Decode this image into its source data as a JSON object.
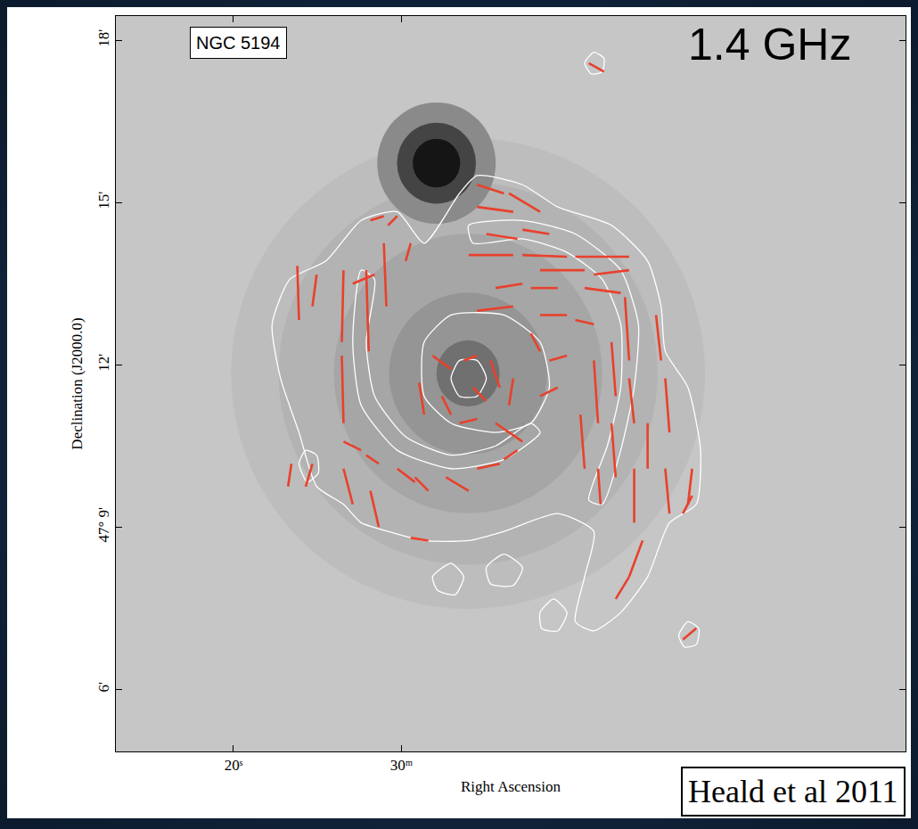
{
  "chart_data": {
    "type": "vector",
    "x_label": "Right Ascension",
    "y_label": "Declination (J2000.0)",
    "annotations": [
      "NGC 5194",
      "1.4 GHz",
      "Heald et al 2011"
    ],
    "xlim": [
      94,
      0
    ],
    "ylim": [
      4.85,
      18.45
    ],
    "xticks": [
      {
        "value": 80,
        "label": "20ˢ"
      },
      {
        "value": 60,
        "label": "30ᵐ"
      }
    ],
    "yticks": [
      {
        "value": 18,
        "label": "18'"
      },
      {
        "value": 15,
        "label": "15'"
      },
      {
        "value": 12,
        "label": "12'"
      },
      {
        "value": 9,
        "label": "47° 9'"
      },
      {
        "value": 6,
        "label": "6'"
      }
    ],
    "grid": false,
    "series": [
      {
        "type": "contour",
        "color": "#ffffff",
        "lines": [
          {
            "x": [
              75.4,
              73.3,
              69.0,
              64.8,
              60.5,
              57.3,
              53.1,
              51.0,
              45.6,
              41.4,
              35.0,
              30.7,
              29.1,
              28.6,
              25.9,
              24.4,
              24.9,
              28.1,
              30.7,
              33.9,
              37.1,
              39.3,
              38.2,
              37.1,
              41.4,
              47.8,
              52.0,
              57.3,
              61.6,
              64.8,
              66.9,
              70.1,
              72.2,
              74.4,
              75.4
            ],
            "y": [
              12.75,
              13.58,
              13.92,
              14.67,
              14.83,
              14.25,
              15.17,
              15.5,
              15.33,
              14.92,
              14.58,
              13.92,
              13.08,
              12.25,
              11.58,
              10.42,
              9.42,
              9.08,
              8.08,
              7.42,
              7.08,
              7.25,
              8.08,
              8.92,
              9.25,
              8.92,
              8.75,
              8.75,
              8.92,
              9.08,
              9.42,
              9.75,
              10.75,
              11.75,
              12.75
            ]
          },
          {
            "x": [
              64.8,
              65.8,
              64.8,
              60.5,
              54.1,
              47.8,
              43.5,
              44.6,
              48.8,
              54.1,
              59.5,
              63.2,
              64.2,
              63.2,
              64.8
            ],
            "y": [
              13.75,
              12.42,
              11.25,
              10.42,
              10.08,
              10.25,
              10.75,
              10.92,
              10.5,
              10.33,
              10.67,
              11.42,
              12.42,
              13.58,
              13.75
            ]
          },
          {
            "x": [
              52.0,
              45.6,
              39.3,
              33.9,
              31.8,
              32.3,
              33.9,
              36.1,
              37.7,
              35.5,
              33.9,
              33.9,
              36.1,
              40.3,
              45.6,
              51.5,
              52.0
            ],
            "y": [
              14.58,
              14.67,
              14.42,
              13.75,
              12.75,
              11.58,
              10.42,
              9.42,
              9.5,
              10.5,
              11.58,
              12.75,
              13.58,
              14.08,
              14.33,
              14.25,
              14.58
            ]
          },
          {
            "x": [
              54.1,
              53.1,
              51.0,
              49.9,
              51.0,
              53.1,
              54.1
            ],
            "y": [
              11.75,
              12.08,
              12.08,
              11.75,
              11.42,
              11.42,
              11.75
            ]
          },
          {
            "x": [
              57.3,
              54.1,
              47.8,
              43.5,
              42.4,
              44.6,
              48.8,
              54.1,
              57.3,
              57.3
            ],
            "y": [
              12.42,
              12.92,
              12.92,
              12.42,
              11.58,
              10.92,
              10.75,
              10.92,
              11.42,
              12.42
            ]
          },
          {
            "x": [
              38.2,
              37.1,
              35.9,
              36.1,
              37.4,
              38.2
            ],
            "y": [
              17.58,
              17.78,
              17.67,
              17.42,
              17.38,
              17.58
            ]
          },
          {
            "x": [
              72.2,
              71.4,
              70.1,
              69.9,
              71.2,
              72.2
            ],
            "y": [
              10.17,
              10.42,
              10.33,
              10.0,
              9.83,
              10.17
            ]
          },
          {
            "x": [
              27.0,
              25.9,
              24.6,
              24.9,
              26.3,
              27.0
            ],
            "y": [
              7.0,
              7.25,
              7.12,
              6.83,
              6.78,
              7.0
            ]
          },
          {
            "x": [
              49.9,
              47.8,
              45.6,
              46.7,
              49.4,
              49.9
            ],
            "y": [
              8.25,
              8.5,
              8.25,
              7.92,
              7.95,
              8.25
            ]
          },
          {
            "x": [
              43.5,
              41.9,
              40.3,
              41.4,
              43.3,
              43.5
            ],
            "y": [
              7.42,
              7.67,
              7.42,
              7.08,
              7.12,
              7.42
            ]
          },
          {
            "x": [
              56.3,
              54.1,
              52.6,
              53.6,
              55.7,
              56.3
            ],
            "y": [
              8.08,
              8.33,
              8.08,
              7.75,
              7.83,
              8.08
            ]
          }
        ]
      },
      {
        "type": "vector",
        "color": "#e8412c",
        "segments": [
          [
            72.4,
            13.83,
            72.2,
            12.83
          ],
          [
            70.1,
            13.67,
            70.6,
            13.08
          ],
          [
            66.9,
            13.75,
            67.1,
            12.42
          ],
          [
            67.1,
            12.17,
            66.9,
            10.92
          ],
          [
            64.2,
            13.75,
            63.9,
            12.25
          ],
          [
            63.7,
            14.67,
            62.1,
            14.75
          ],
          [
            61.6,
            14.58,
            60.5,
            14.75
          ],
          [
            59.5,
            13.92,
            58.9,
            14.25
          ],
          [
            62.1,
            14.25,
            61.8,
            13.08
          ],
          [
            65.8,
            13.5,
            63.2,
            13.67
          ],
          [
            66.9,
            10.58,
            64.8,
            10.42
          ],
          [
            64.2,
            10.33,
            62.7,
            10.17
          ],
          [
            66.9,
            10.08,
            65.8,
            9.42
          ],
          [
            63.7,
            9.67,
            62.7,
            9.0
          ],
          [
            60.5,
            10.08,
            58.4,
            9.83
          ],
          [
            58.4,
            9.92,
            56.8,
            9.67
          ],
          [
            58.9,
            8.8,
            56.8,
            8.75
          ],
          [
            54.7,
            9.92,
            52.0,
            9.67
          ],
          [
            70.6,
            10.17,
            71.4,
            9.75
          ],
          [
            51.0,
            15.33,
            47.8,
            15.17
          ],
          [
            47.2,
            15.17,
            43.5,
            14.83
          ],
          [
            51.0,
            14.92,
            46.7,
            14.83
          ],
          [
            49.9,
            14.42,
            46.2,
            14.33
          ],
          [
            45.6,
            14.5,
            42.4,
            14.42
          ],
          [
            52.0,
            14.03,
            46.7,
            14.03
          ],
          [
            45.6,
            14.03,
            40.3,
            14.0
          ],
          [
            39.3,
            14.0,
            32.9,
            14.0
          ],
          [
            43.5,
            13.75,
            38.2,
            13.75
          ],
          [
            37.1,
            13.67,
            32.9,
            13.75
          ],
          [
            48.8,
            13.42,
            45.6,
            13.5
          ],
          [
            44.6,
            13.42,
            41.4,
            13.42
          ],
          [
            38.2,
            13.42,
            33.9,
            13.33
          ],
          [
            51.0,
            13.0,
            46.7,
            13.08
          ],
          [
            43.5,
            12.92,
            40.3,
            12.92
          ],
          [
            39.3,
            12.83,
            37.1,
            12.75
          ],
          [
            33.4,
            13.25,
            32.9,
            12.08
          ],
          [
            29.7,
            12.92,
            29.1,
            12.08
          ],
          [
            35.0,
            12.42,
            34.5,
            11.42
          ],
          [
            37.1,
            12.08,
            36.6,
            10.92
          ],
          [
            28.6,
            11.75,
            28.1,
            10.75
          ],
          [
            32.9,
            11.75,
            32.3,
            10.92
          ],
          [
            38.7,
            11.08,
            38.2,
            10.08
          ],
          [
            35.0,
            10.92,
            34.5,
            9.92
          ],
          [
            30.7,
            10.92,
            30.7,
            10.08
          ],
          [
            32.3,
            10.08,
            32.3,
            9.08
          ],
          [
            36.6,
            10.08,
            36.3,
            9.42
          ],
          [
            28.6,
            10.08,
            28.1,
            9.25
          ],
          [
            25.4,
            10.08,
            25.9,
            9.42
          ],
          [
            31.3,
            8.75,
            32.9,
            8.08
          ],
          [
            32.9,
            8.08,
            34.5,
            7.67
          ],
          [
            56.3,
            12.17,
            54.1,
            11.92
          ],
          [
            52.6,
            12.08,
            51.0,
            12.17
          ],
          [
            49.4,
            12.08,
            48.3,
            11.58
          ],
          [
            46.7,
            11.75,
            47.2,
            11.25
          ],
          [
            51.5,
            11.58,
            49.9,
            11.33
          ],
          [
            55.2,
            11.42,
            54.1,
            11.08
          ],
          [
            53.1,
            10.92,
            51.0,
            11.0
          ],
          [
            48.8,
            10.92,
            45.6,
            10.58
          ],
          [
            47.8,
            10.25,
            46.2,
            10.42
          ],
          [
            51.0,
            10.08,
            48.3,
            10.17
          ],
          [
            57.9,
            11.67,
            57.3,
            11.08
          ],
          [
            44.6,
            12.58,
            43.5,
            12.25
          ],
          [
            42.4,
            12.08,
            40.3,
            12.17
          ],
          [
            43.5,
            11.42,
            41.4,
            11.58
          ],
          [
            37.7,
            17.58,
            35.9,
            17.42
          ],
          [
            26.5,
            6.92,
            24.9,
            7.13
          ],
          [
            73.1,
            10.17,
            73.5,
            9.75
          ],
          [
            26.5,
            9.25,
            25.4,
            9.58
          ]
        ]
      }
    ]
  }
}
